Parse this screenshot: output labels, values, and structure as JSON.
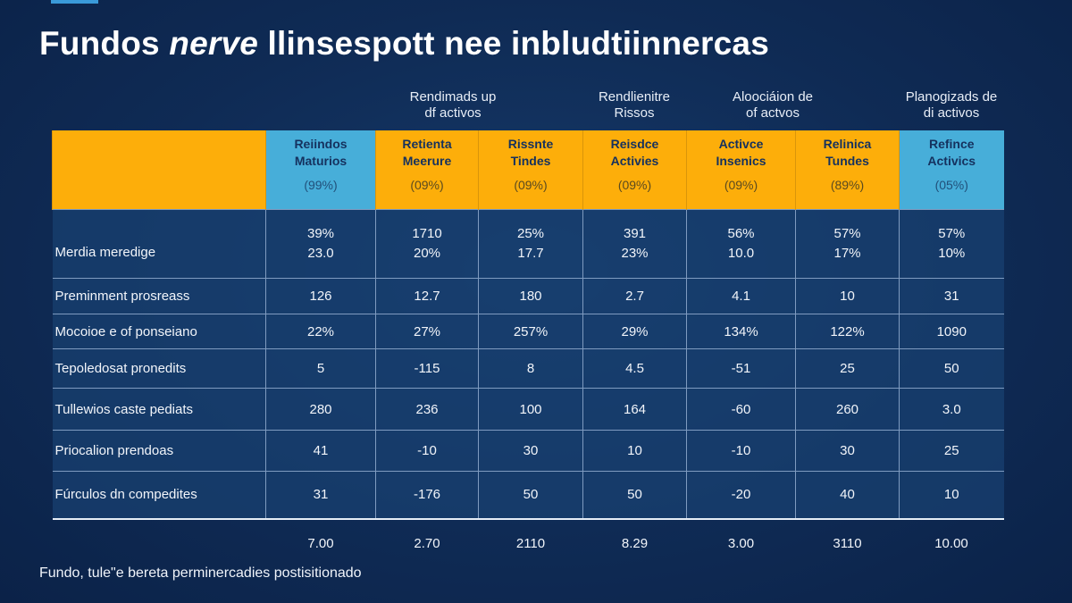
{
  "title": {
    "part1": "Fundos ",
    "italic": "nerve",
    "part2": " llinsespott nee inbludtiinnercas"
  },
  "groups": [
    "Rendimads up\ndf activos",
    "Rendlienitre\nRissos",
    "Aloociáion de\nof actvos",
    "Planogizads de\ndi activos"
  ],
  "colors": {
    "accent_orange": "#fdae0a",
    "accent_blue": "#47aed9",
    "background": "#0f2b55"
  },
  "columns": [
    {
      "name": "Reiindos\nMaturios",
      "pct": "(99%)",
      "color": "blue"
    },
    {
      "name": "Retienta\nMeerure",
      "pct": "(09%)",
      "color": "orange"
    },
    {
      "name": "Rissnte\nTindes",
      "pct": "(09%)",
      "color": "orange"
    },
    {
      "name": "Reisdce\nActivies",
      "pct": "(09%)",
      "color": "orange"
    },
    {
      "name": "Activce\nInsenics",
      "pct": "(09%)",
      "color": "orange"
    },
    {
      "name": "Relinica\nTundes",
      "pct": "(89%)",
      "color": "orange"
    },
    {
      "name": "Refince\nActivics",
      "pct": "(05%)",
      "color": "blue"
    }
  ],
  "rows": [
    {
      "label": "Merdia meredige",
      "values": [
        "39%\n23.0",
        "1710\n20%",
        "25%\n17.7",
        "391\n23%",
        "56%\n10.0",
        "57%\n17%",
        "57%\n10%"
      ]
    },
    {
      "label": "Preminment prosreass",
      "values": [
        "126",
        "12.7",
        "180",
        "2.7",
        "4.1",
        "10",
        "31"
      ]
    },
    {
      "label": "Mocoioe e of ponseiano",
      "values": [
        "22%",
        "27%",
        "257%",
        "29%",
        "134%",
        "122%",
        "1090"
      ]
    },
    {
      "label": "Tepoledosat pronedits",
      "values": [
        "5",
        "-115",
        "8",
        "4.5",
        "-51",
        "25",
        "50"
      ]
    },
    {
      "label": "Tullewios caste pediats",
      "values": [
        "280",
        "236",
        "100",
        "164",
        "-60",
        "260",
        "3.0"
      ]
    },
    {
      "label": "Priocalion prendoas",
      "values": [
        "41",
        "-10",
        "30",
        "10",
        "-10",
        "30",
        "25"
      ]
    },
    {
      "label": "Fúrculos dn compedites",
      "values": [
        "31",
        "-176",
        "50",
        "50",
        "-20",
        "40",
        "10"
      ]
    }
  ],
  "totals": [
    "7.00",
    "2.70",
    "2110",
    "8.29",
    "3.00",
    "3110",
    "10.00"
  ],
  "footer": "Fundo, tule\"e bereta perminercadies postisitionado"
}
